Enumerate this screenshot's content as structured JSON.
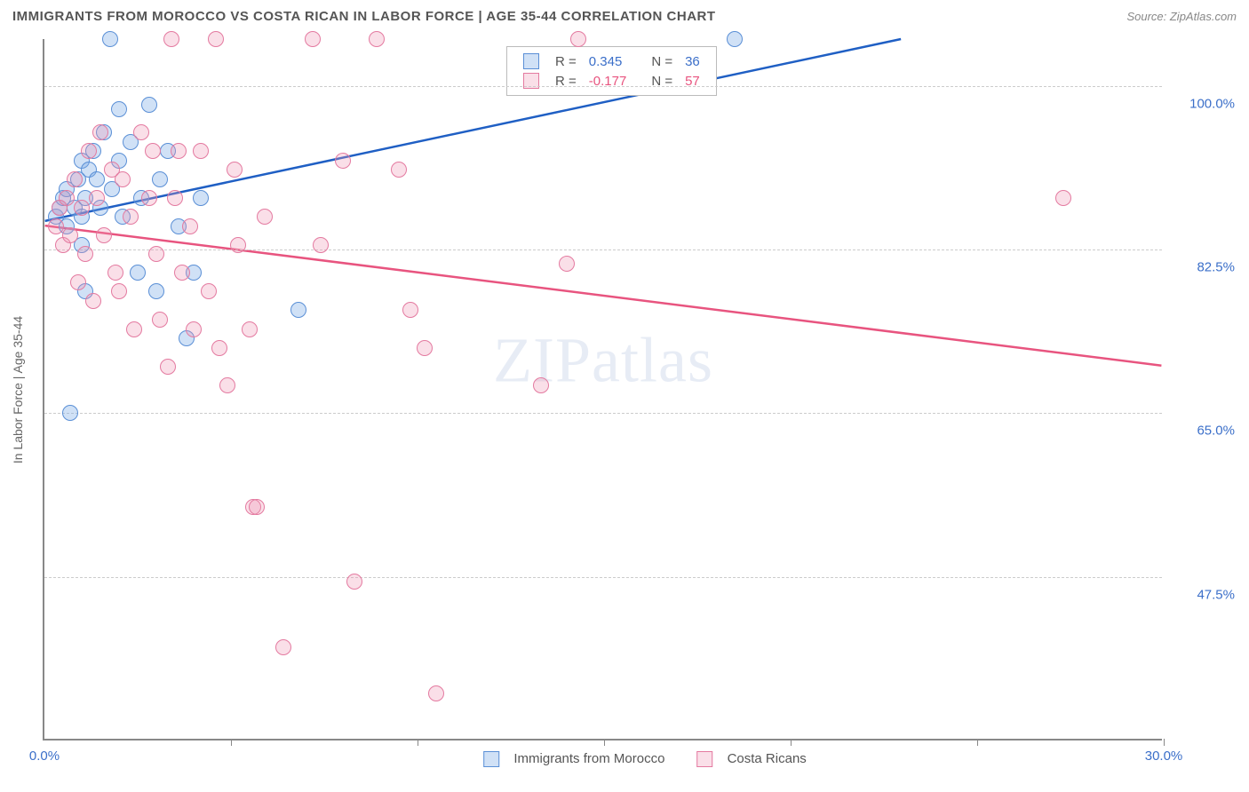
{
  "header": {
    "title": "IMMIGRANTS FROM MOROCCO VS COSTA RICAN IN LABOR FORCE | AGE 35-44 CORRELATION CHART",
    "source": "Source: ZipAtlas.com"
  },
  "chart": {
    "type": "scatter",
    "y_axis_label": "In Labor Force | Age 35-44",
    "xlim": [
      0,
      30
    ],
    "ylim": [
      30,
      105
    ],
    "x_ticks": [
      0,
      5,
      10,
      15,
      20,
      25,
      30
    ],
    "x_tick_labels": {
      "0": "0.0%",
      "30": "30.0%"
    },
    "y_gridlines": [
      47.5,
      65.0,
      82.5,
      100.0
    ],
    "y_tick_labels": [
      "47.5%",
      "65.0%",
      "82.5%",
      "100.0%"
    ],
    "background_color": "#ffffff",
    "grid_color": "#cccccc",
    "axis_color": "#888888",
    "tick_label_color": "#3b6fc9",
    "point_radius": 9,
    "series": [
      {
        "name": "Immigrants from Morocco",
        "color_fill": "rgba(120,170,230,0.35)",
        "color_stroke": "#5a8fd6",
        "trend_color": "#1f5fc4",
        "trend_width": 2.5,
        "R": "0.345",
        "N": "36",
        "trend": {
          "x1": 0,
          "y1": 85.5,
          "x2": 23,
          "y2": 105
        },
        "points": [
          [
            0.3,
            86
          ],
          [
            0.4,
            87
          ],
          [
            0.5,
            88
          ],
          [
            0.6,
            85
          ],
          [
            0.6,
            89
          ],
          [
            0.8,
            87
          ],
          [
            0.9,
            90
          ],
          [
            1.0,
            92
          ],
          [
            1.0,
            86
          ],
          [
            1.1,
            88
          ],
          [
            1.2,
            91
          ],
          [
            1.3,
            93
          ],
          [
            1.4,
            90
          ],
          [
            1.5,
            87
          ],
          [
            1.6,
            95
          ],
          [
            1.75,
            105
          ],
          [
            1.8,
            89
          ],
          [
            2.0,
            92
          ],
          [
            2.0,
            97.5
          ],
          [
            2.1,
            86
          ],
          [
            2.3,
            94
          ],
          [
            2.5,
            80
          ],
          [
            2.6,
            88
          ],
          [
            2.8,
            98
          ],
          [
            3.0,
            78
          ],
          [
            3.1,
            90
          ],
          [
            3.3,
            93
          ],
          [
            3.6,
            85
          ],
          [
            3.8,
            73
          ],
          [
            4.0,
            80
          ],
          [
            4.2,
            88
          ],
          [
            0.7,
            65
          ],
          [
            1.1,
            78
          ],
          [
            6.8,
            76
          ],
          [
            18.5,
            105
          ],
          [
            1.0,
            83
          ]
        ]
      },
      {
        "name": "Costa Ricans",
        "color_fill": "rgba(240,150,180,0.30)",
        "color_stroke": "#e47aa0",
        "trend_color": "#e8547f",
        "trend_width": 2.5,
        "R": "-0.177",
        "N": "57",
        "trend": {
          "x1": 0,
          "y1": 85.0,
          "x2": 30,
          "y2": 70
        },
        "points": [
          [
            0.3,
            85
          ],
          [
            0.4,
            87
          ],
          [
            0.5,
            83
          ],
          [
            0.6,
            88
          ],
          [
            0.7,
            84
          ],
          [
            0.8,
            90
          ],
          [
            0.9,
            79
          ],
          [
            1.0,
            87
          ],
          [
            1.1,
            82
          ],
          [
            1.2,
            93
          ],
          [
            1.3,
            77
          ],
          [
            1.4,
            88
          ],
          [
            1.5,
            95
          ],
          [
            1.6,
            84
          ],
          [
            1.8,
            91
          ],
          [
            1.9,
            80
          ],
          [
            2.0,
            78
          ],
          [
            2.1,
            90
          ],
          [
            2.3,
            86
          ],
          [
            2.4,
            74
          ],
          [
            2.6,
            95
          ],
          [
            2.8,
            88
          ],
          [
            3.0,
            82
          ],
          [
            3.1,
            75
          ],
          [
            2.9,
            93
          ],
          [
            3.3,
            70
          ],
          [
            3.5,
            88
          ],
          [
            3.6,
            93
          ],
          [
            3.7,
            80
          ],
          [
            3.9,
            85
          ],
          [
            4.0,
            74
          ],
          [
            4.2,
            93
          ],
          [
            4.4,
            78
          ],
          [
            4.7,
            72
          ],
          [
            4.9,
            68
          ],
          [
            5.1,
            91
          ],
          [
            5.2,
            83
          ],
          [
            5.5,
            74
          ],
          [
            5.6,
            55
          ],
          [
            5.7,
            55
          ],
          [
            5.9,
            86
          ],
          [
            6.4,
            40
          ],
          [
            7.2,
            105
          ],
          [
            7.4,
            83
          ],
          [
            8.0,
            92
          ],
          [
            8.3,
            47
          ],
          [
            8.9,
            105
          ],
          [
            9.5,
            91
          ],
          [
            10.2,
            72
          ],
          [
            10.5,
            35
          ],
          [
            9.8,
            76
          ],
          [
            13.3,
            68
          ],
          [
            14.0,
            81
          ],
          [
            14.3,
            105
          ],
          [
            27.3,
            88
          ],
          [
            3.4,
            105
          ],
          [
            4.6,
            105
          ]
        ]
      }
    ],
    "top_legend": {
      "rows": [
        {
          "swatch_fill": "rgba(120,170,230,0.35)",
          "swatch_stroke": "#5a8fd6",
          "r_label": "R =",
          "r_value": "0.345",
          "r_color": "#3b6fc9",
          "n_label": "N =",
          "n_value": "36",
          "n_color": "#3b6fc9"
        },
        {
          "swatch_fill": "rgba(240,150,180,0.30)",
          "swatch_stroke": "#e47aa0",
          "r_label": "R =",
          "r_value": "-0.177",
          "r_color": "#e8547f",
          "n_label": "N =",
          "n_value": "57",
          "n_color": "#e8547f"
        }
      ]
    },
    "bottom_legend": [
      {
        "swatch_fill": "rgba(120,170,230,0.35)",
        "swatch_stroke": "#5a8fd6",
        "label": "Immigrants from Morocco"
      },
      {
        "swatch_fill": "rgba(240,150,180,0.30)",
        "swatch_stroke": "#e47aa0",
        "label": "Costa Ricans"
      }
    ],
    "watermark": {
      "part1": "ZIP",
      "part2": "atlas"
    }
  }
}
